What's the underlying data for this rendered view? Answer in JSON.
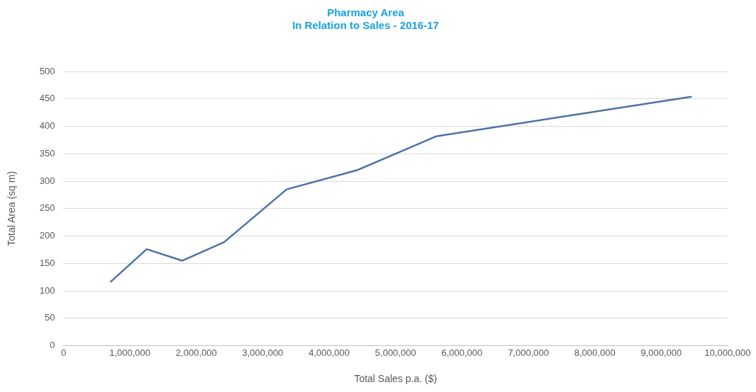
{
  "chart_data": {
    "type": "line",
    "title": "Pharmacy Area\nIn Relation to Sales - 2016-17",
    "xlabel": "Total Sales p.a. ($)",
    "ylabel": "Total Area (sq m)",
    "x": [
      715000,
      1253000,
      1790000,
      2420000,
      3360000,
      4420000,
      5620000,
      9450000
    ],
    "series": [
      {
        "color": "#4a72a8",
        "values": [
          117,
          176,
          155,
          189,
          285,
          320,
          382,
          454
        ]
      }
    ],
    "xlim": [
      0,
      10000000
    ],
    "xticks": [
      0,
      {
        "value": 1000000,
        "label": "1,000,000"
      },
      {
        "value": 2000000,
        "label": "2,000,000"
      },
      {
        "value": 3000000,
        "label": "3,000,000"
      },
      {
        "value": 4000000,
        "label": "4,000,000"
      },
      {
        "value": 5000000,
        "label": "5,000,000"
      },
      {
        "value": 6000000,
        "label": "6,000,000"
      },
      {
        "value": 7000000,
        "label": "7,000,000"
      },
      {
        "value": 8000000,
        "label": "8,000,000"
      },
      {
        "value": 9000000,
        "label": "9,000,000"
      },
      {
        "value": 10000000,
        "label": "10,000,000"
      }
    ],
    "ylim": [
      0,
      500
    ],
    "yticks": [
      0,
      50,
      100,
      150,
      200,
      250,
      300,
      350,
      400,
      450,
      500
    ],
    "grid": "y",
    "marker": "none",
    "line_style": "solid"
  }
}
